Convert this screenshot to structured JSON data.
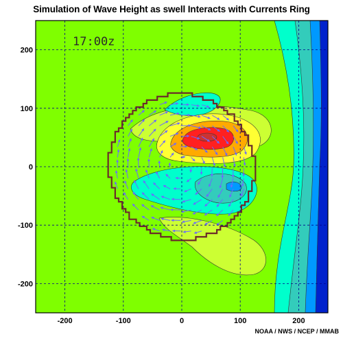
{
  "chart_data": {
    "type": "heatmap",
    "title": "Simulation of Wave Height as swell Interacts with Currents Ring",
    "annotation": "17:00z",
    "credit": "NOAA / NWS / NCEP / MMAB",
    "xlim": [
      -250,
      250
    ],
    "ylim": [
      -250,
      250
    ],
    "xticks": [
      -200,
      -100,
      0,
      100,
      200
    ],
    "yticks": [
      -200,
      -100,
      0,
      100,
      200
    ],
    "grid": true,
    "colors": {
      "background": "#7fff00",
      "yellow_green": "#ccff33",
      "yellow": "#ffff33",
      "orange": "#ffaa00",
      "red": "#ff2020",
      "cyan": "#00ffcc",
      "teal": "#33ccbb",
      "blue": "#0066ff",
      "dark_blue": "#0022cc",
      "ring": "#6b2a2a",
      "vectors": "#6a6aff",
      "grid": "#00008b"
    },
    "ring": {
      "center": [
        0,
        0
      ],
      "radius": 125
    },
    "features": [
      {
        "name": "wave height maximum",
        "center": [
          50,
          50
        ],
        "level": "red"
      },
      {
        "name": "wave height minimum",
        "center": [
          45,
          -25
        ],
        "level": "teal"
      }
    ]
  }
}
